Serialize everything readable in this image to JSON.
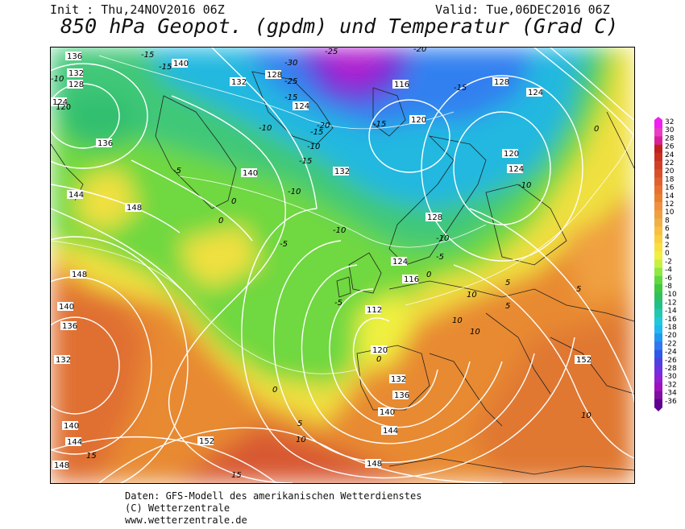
{
  "header": {
    "init": "Init : Thu,24NOV2016 06Z",
    "valid": "Valid: Tue,06DEC2016 06Z",
    "title": "850 hPa Geopot. (gpdm) und Temperatur (Grad C)"
  },
  "footer": {
    "line1": "Daten: GFS-Modell des amerikanischen Wetterdienstes",
    "line2": "(C) Wetterzentrale",
    "line3": "www.wetterzentrale.de"
  },
  "color_scale": {
    "values": [
      "32",
      "30",
      "28",
      "26",
      "24",
      "22",
      "20",
      "18",
      "16",
      "14",
      "12",
      "10",
      "8",
      "6",
      "4",
      "2",
      "0",
      "-2",
      "-4",
      "-6",
      "-8",
      "-10",
      "-12",
      "-14",
      "-16",
      "-18",
      "-20",
      "-22",
      "-24",
      "-26",
      "-28",
      "-30",
      "-32",
      "-34",
      "-36"
    ],
    "colors": [
      "#f020f0",
      "#e83ec4",
      "#d8209a",
      "#c02020",
      "#c83020",
      "#d04028",
      "#d85028",
      "#e06030",
      "#e87030",
      "#e88030",
      "#f09040",
      "#f0a040",
      "#f0b048",
      "#f8c040",
      "#f8d040",
      "#f8e040",
      "#f0f040",
      "#c8f040",
      "#90e840",
      "#60d840",
      "#40c840",
      "#30c060",
      "#20c088",
      "#20c8b0",
      "#20c8d8",
      "#20b8f0",
      "#2098f0",
      "#3078f0",
      "#3058e8",
      "#5040e0",
      "#7030e0",
      "#9020d0",
      "#a010c0",
      "#8010a0",
      "#600090"
    ]
  },
  "geopotential_labels": [
    "136",
    "140",
    "132",
    "128",
    "124",
    "120",
    "116",
    "112",
    "144",
    "148",
    "152"
  ],
  "temperature_labels": [
    "-15",
    "-20",
    "-25",
    "-30",
    "-10",
    "-5",
    "0",
    "5",
    "10",
    "15"
  ],
  "colors": {
    "frame": "#000000",
    "isoline": "#ffffff",
    "coast": "#222222"
  }
}
